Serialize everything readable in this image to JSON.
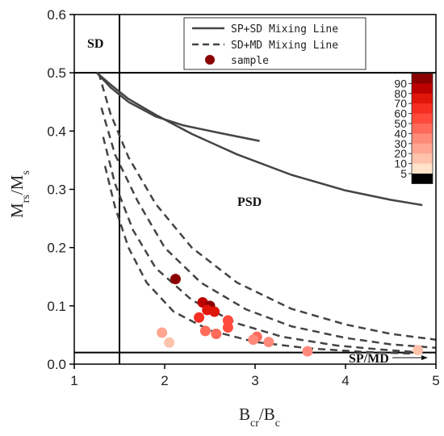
{
  "chart_data": {
    "type": "scatter",
    "xlabel": "Bcr/Bc",
    "ylabel": "Mrs/Ms",
    "xlim": [
      1,
      5
    ],
    "ylim": [
      0,
      0.6
    ],
    "x_ticks": [
      1,
      2,
      3,
      4,
      5
    ],
    "y_ticks": [
      0.0,
      0.1,
      0.2,
      0.3,
      0.4,
      0.5,
      0.6
    ],
    "region_labels": [
      "SD",
      "PSD",
      "SP/MD"
    ],
    "boundaries": {
      "vertical_x": 1.5,
      "horizontal_y": [
        0.5,
        0.02
      ]
    },
    "legend": {
      "position": "top-right",
      "entries": [
        "SP+SD Mixing Line",
        "SD+MD Mixing Line",
        "sample"
      ]
    },
    "series": [
      {
        "name": "SP+SD Mixing Line",
        "style": "solid",
        "lines": [
          {
            "x": [
              1.25,
              1.4,
              1.6,
              1.9,
              2.3,
              2.8,
              3.4,
              4.0,
              4.5,
              4.85
            ],
            "y": [
              0.5,
              0.48,
              0.455,
              0.428,
              0.395,
              0.36,
              0.325,
              0.298,
              0.282,
              0.273
            ]
          },
          {
            "x": [
              1.25,
              1.4,
              1.6,
              1.9,
              2.2,
              2.6,
              3.05
            ],
            "y": [
              0.5,
              0.475,
              0.45,
              0.425,
              0.41,
              0.397,
              0.383
            ]
          }
        ]
      },
      {
        "name": "SD+MD Mixing Line",
        "style": "dashed",
        "lines": [
          {
            "x": [
              1.27,
              1.4,
              1.6,
              1.9,
              2.3,
              2.8,
              3.4,
              4.0,
              4.5,
              5.0
            ],
            "y": [
              0.5,
              0.43,
              0.355,
              0.275,
              0.2,
              0.14,
              0.095,
              0.068,
              0.052,
              0.042
            ]
          },
          {
            "x": [
              1.3,
              1.45,
              1.7,
              2.0,
              2.4,
              2.9,
              3.4,
              4.0,
              4.5,
              5.0
            ],
            "y": [
              0.44,
              0.36,
              0.28,
              0.2,
              0.14,
              0.094,
              0.065,
              0.045,
              0.034,
              0.028
            ]
          },
          {
            "x": [
              1.32,
              1.45,
              1.65,
              1.9,
              2.3,
              2.8,
              3.3,
              3.9,
              4.4,
              4.85
            ],
            "y": [
              0.39,
              0.31,
              0.23,
              0.165,
              0.11,
              0.07,
              0.047,
              0.032,
              0.025,
              0.02
            ]
          },
          {
            "x": [
              1.34,
              1.45,
              1.6,
              1.8,
              2.1,
              2.5,
              3.0,
              3.6,
              4.2,
              4.75
            ],
            "y": [
              0.34,
              0.27,
              0.2,
              0.14,
              0.09,
              0.058,
              0.038,
              0.027,
              0.021,
              0.018
            ]
          }
        ]
      },
      {
        "name": "sample",
        "style": "points",
        "points": [
          {
            "x": 2.12,
            "y": 0.146,
            "v": 95
          },
          {
            "x": 2.42,
            "y": 0.106,
            "v": 80
          },
          {
            "x": 2.5,
            "y": 0.1,
            "v": 90
          },
          {
            "x": 2.55,
            "y": 0.09,
            "v": 75
          },
          {
            "x": 2.47,
            "y": 0.093,
            "v": 70
          },
          {
            "x": 2.38,
            "y": 0.08,
            "v": 60
          },
          {
            "x": 2.7,
            "y": 0.075,
            "v": 55
          },
          {
            "x": 2.7,
            "y": 0.063,
            "v": 55
          },
          {
            "x": 2.45,
            "y": 0.057,
            "v": 40
          },
          {
            "x": 2.57,
            "y": 0.052,
            "v": 45
          },
          {
            "x": 1.97,
            "y": 0.054,
            "v": 20
          },
          {
            "x": 2.05,
            "y": 0.037,
            "v": 15
          },
          {
            "x": 3.02,
            "y": 0.047,
            "v": 40
          },
          {
            "x": 2.98,
            "y": 0.042,
            "v": 30
          },
          {
            "x": 3.15,
            "y": 0.038,
            "v": 35
          },
          {
            "x": 3.58,
            "y": 0.022,
            "v": 30
          },
          {
            "x": 4.8,
            "y": 0.024,
            "v": 15
          }
        ]
      }
    ],
    "colorbar": {
      "ticks": [
        90,
        80,
        70,
        60,
        50,
        40,
        30,
        20,
        10,
        5
      ],
      "colors": [
        "#8b0000",
        "#bd0000",
        "#e0160a",
        "#f52e22",
        "#ff4a3c",
        "#ff6a5a",
        "#ff8a7a",
        "#ffa592",
        "#ffc2aa",
        "#ffe2c8",
        "#000000"
      ]
    }
  }
}
